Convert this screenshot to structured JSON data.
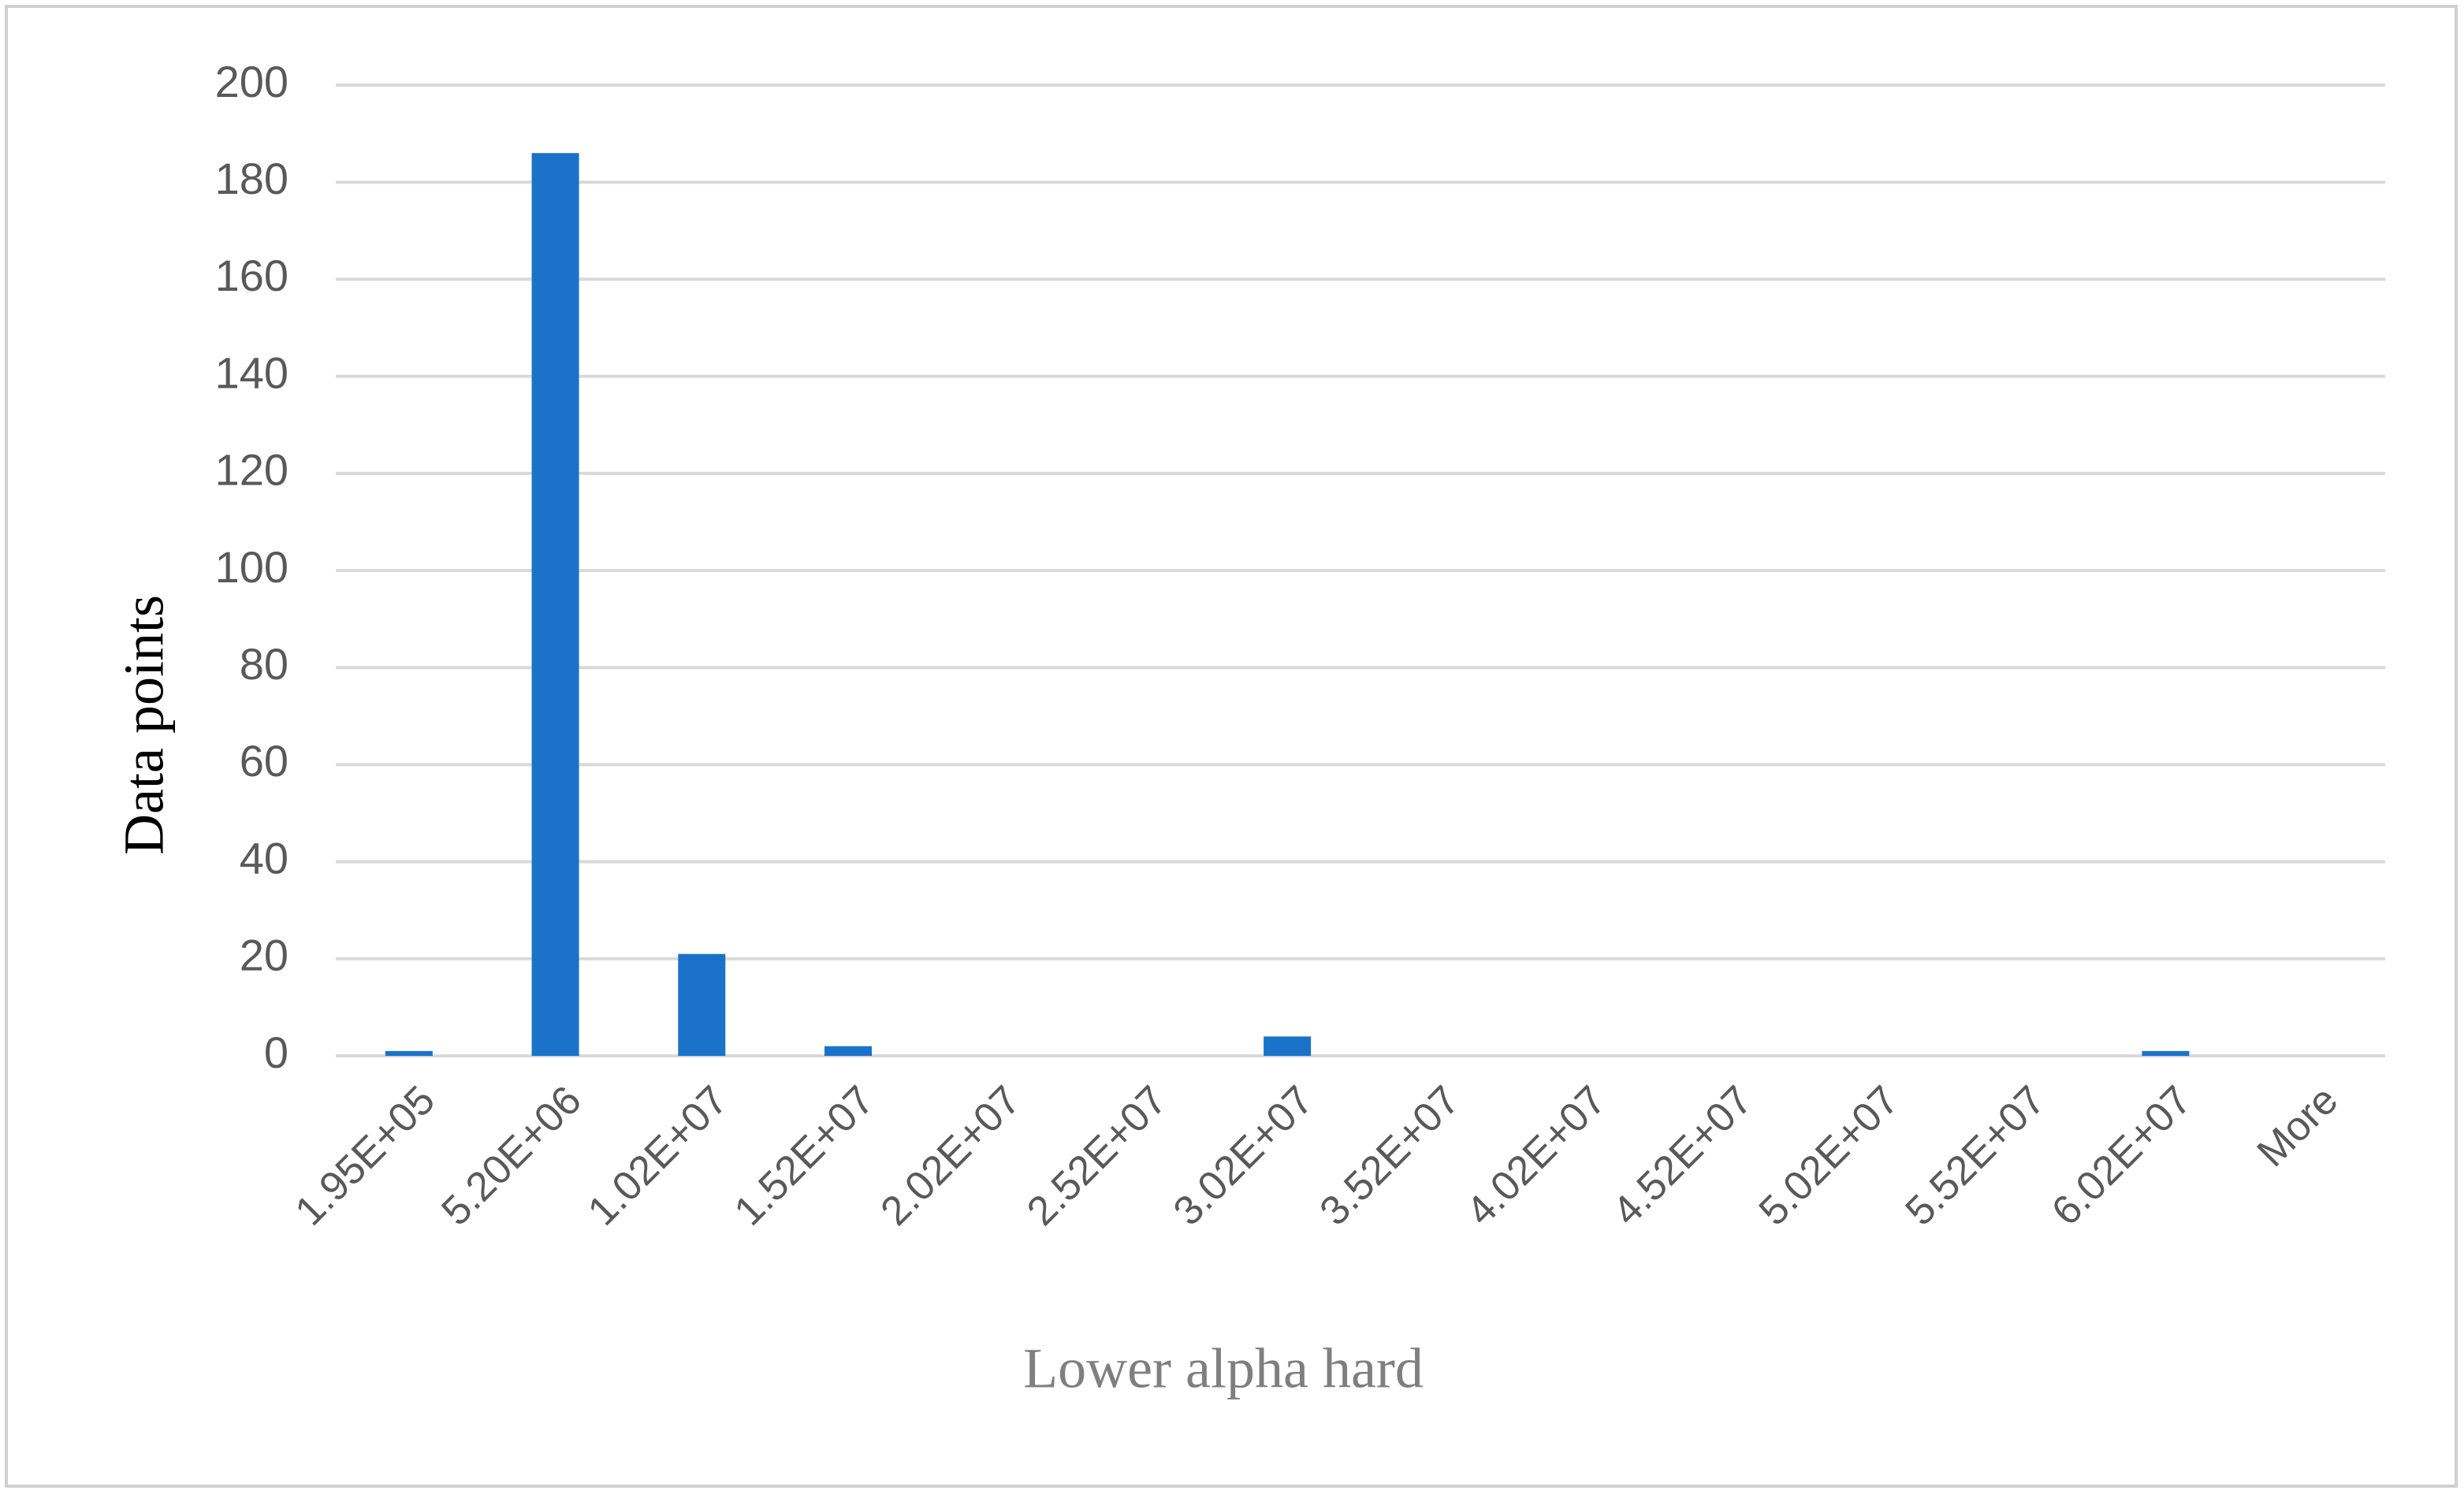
{
  "chart_data": {
    "type": "bar",
    "x_label": "Lower alpha hard",
    "y_label": "Data points",
    "categories": [
      "1.95E+05",
      "5.20E+06",
      "1.02E+07",
      "1.52E+07",
      "2.02E+07",
      "2.52E+07",
      "3.02E+07",
      "3.52E+07",
      "4.02E+07",
      "4.52E+07",
      "5.02E+07",
      "5.52E+07",
      "6.02E+07",
      "More"
    ],
    "values": [
      1,
      186,
      21,
      2,
      0,
      0,
      4,
      0,
      0,
      0,
      0,
      0,
      1,
      0
    ],
    "color": "#1a73c8",
    "ylim": [
      0,
      200
    ],
    "yticks": [
      0,
      20,
      40,
      60,
      80,
      100,
      120,
      140,
      160,
      180,
      200
    ],
    "grid": true
  }
}
